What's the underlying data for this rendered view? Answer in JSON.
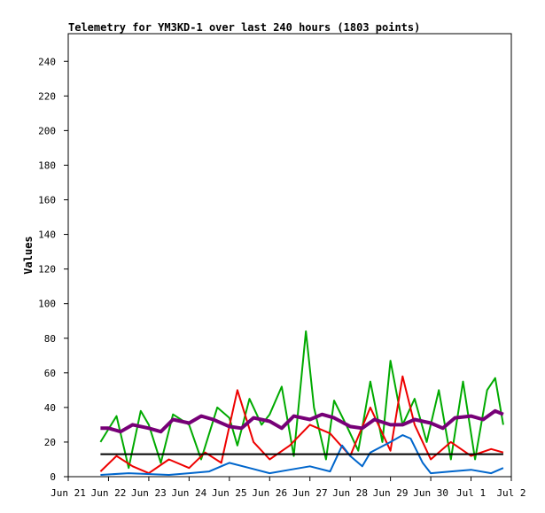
{
  "chart_data": {
    "type": "line",
    "title": "Telemetry for YM3KD-1 over last 240 hours (1803 points)",
    "xlabel": "",
    "ylabel": "Values",
    "ylim": [
      0,
      256
    ],
    "xlim": [
      0,
      11
    ],
    "grid": false,
    "legend": "none",
    "y_ticks": [
      0,
      20,
      40,
      60,
      80,
      100,
      120,
      140,
      160,
      180,
      200,
      220,
      240
    ],
    "x_ticks": [
      {
        "x": 0,
        "label": "Jun 21"
      },
      {
        "x": 1,
        "label": "Jun 22"
      },
      {
        "x": 2,
        "label": "Jun 23"
      },
      {
        "x": 3,
        "label": "Jun 24"
      },
      {
        "x": 4,
        "label": "Jun 25"
      },
      {
        "x": 5,
        "label": "Jun 26"
      },
      {
        "x": 6,
        "label": "Jun 27"
      },
      {
        "x": 7,
        "label": "Jun 28"
      },
      {
        "x": 8,
        "label": "Jun 29"
      },
      {
        "x": 9,
        "label": "Jun 30"
      },
      {
        "x": 10,
        "label": "Jul 1"
      },
      {
        "x": 11,
        "label": "Jul 2"
      }
    ],
    "series": [
      {
        "color": "#00aa00",
        "x": [
          0.8,
          1.2,
          1.5,
          1.8,
          2.0,
          2.3,
          2.6,
          3.0,
          3.3,
          3.7,
          4.0,
          4.2,
          4.5,
          4.8,
          5.0,
          5.3,
          5.6,
          5.9,
          6.1,
          6.4,
          6.6,
          6.9,
          7.2,
          7.5,
          7.8,
          8.0,
          8.3,
          8.6,
          8.9,
          9.2,
          9.5,
          9.8,
          10.1,
          10.4,
          10.6,
          10.8
        ],
        "y": [
          20,
          35,
          5,
          38,
          30,
          8,
          36,
          30,
          10,
          40,
          34,
          18,
          45,
          30,
          36,
          52,
          12,
          84,
          40,
          10,
          44,
          30,
          15,
          55,
          20,
          67,
          30,
          45,
          20,
          50,
          10,
          55,
          10,
          50,
          57,
          30
        ]
      },
      {
        "color": "#ee0000",
        "x": [
          0.8,
          1.2,
          1.6,
          2.0,
          2.5,
          3.0,
          3.4,
          3.8,
          4.2,
          4.6,
          5.0,
          5.5,
          6.0,
          6.5,
          7.0,
          7.5,
          8.0,
          8.3,
          8.6,
          9.0,
          9.5,
          10.0,
          10.5,
          10.8
        ],
        "y": [
          3,
          12,
          6,
          2,
          10,
          5,
          14,
          8,
          50,
          20,
          10,
          18,
          30,
          25,
          12,
          40,
          15,
          58,
          30,
          10,
          20,
          12,
          16,
          14
        ]
      },
      {
        "color": "#0066cc",
        "x": [
          0.8,
          1.5,
          2.5,
          3.0,
          3.5,
          4.0,
          4.5,
          5.0,
          5.5,
          6.0,
          6.5,
          6.8,
          7.0,
          7.3,
          7.5,
          8.0,
          8.3,
          8.5,
          8.8,
          9.0,
          9.5,
          10.0,
          10.5,
          10.8
        ],
        "y": [
          1,
          2,
          1,
          2,
          3,
          8,
          5,
          2,
          4,
          6,
          3,
          18,
          12,
          6,
          14,
          20,
          24,
          22,
          8,
          2,
          3,
          4,
          2,
          5
        ]
      },
      {
        "color": "#770077",
        "x": [
          0.8,
          1.0,
          1.3,
          1.6,
          2.0,
          2.3,
          2.6,
          3.0,
          3.3,
          3.6,
          4.0,
          4.3,
          4.6,
          5.0,
          5.3,
          5.6,
          6.0,
          6.3,
          6.6,
          7.0,
          7.3,
          7.6,
          8.0,
          8.3,
          8.6,
          9.0,
          9.3,
          9.6,
          10.0,
          10.3,
          10.6,
          10.8
        ],
        "y": [
          28,
          28,
          26,
          30,
          28,
          26,
          33,
          31,
          35,
          33,
          29,
          28,
          34,
          32,
          28,
          35,
          33,
          36,
          34,
          29,
          28,
          33,
          30,
          30,
          33,
          31,
          28,
          34,
          35,
          33,
          38,
          36
        ]
      },
      {
        "color": "#000000",
        "x": [
          0.8,
          10.8
        ],
        "y": [
          13,
          13
        ]
      }
    ]
  }
}
